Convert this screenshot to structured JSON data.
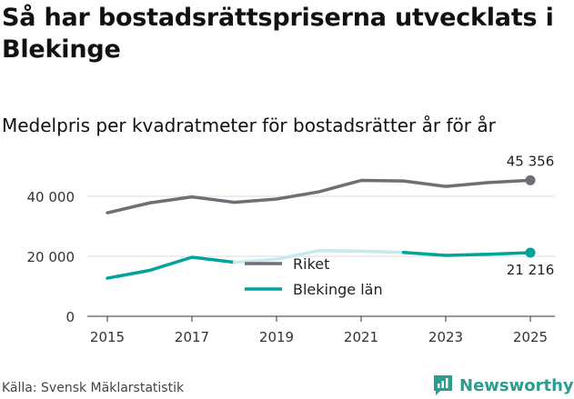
{
  "title": "Så har bostadsrättspriserna utvecklats i Blekinge",
  "subtitle": "Medelpris per kvadratmeter för bostadsrätter år för år",
  "source": "Källa: Svensk Mäklarstatistik",
  "brand": {
    "name": "Newsworthy",
    "icon": "newsworthy-logo-icon"
  },
  "colors": {
    "riket": "#6e6e76",
    "blekinge": "#00a39a",
    "blekinge_faded": "#c7eaea",
    "grid": "#dddddd",
    "axis": "#333333"
  },
  "chart_data": {
    "type": "line",
    "x": [
      2015,
      2016,
      2017,
      2018,
      2019,
      2020,
      2021,
      2022,
      2023,
      2024,
      2025
    ],
    "series": [
      {
        "name": "Riket",
        "values": [
          34500,
          37800,
          39800,
          38000,
          39100,
          41500,
          45300,
          45100,
          43300,
          44600,
          45356
        ]
      },
      {
        "name": "Blekinge län",
        "values": [
          12700,
          15300,
          19700,
          18000,
          19000,
          21900,
          21700,
          21300,
          20300,
          20700,
          21216
        ]
      }
    ],
    "xticks": [
      "2015",
      "2017",
      "2019",
      "2021",
      "2023",
      "2025"
    ],
    "yticks": [
      "0",
      "20 000",
      "40 000"
    ],
    "ylim": [
      0,
      50000
    ],
    "end_labels": [
      "45 356",
      "21 216"
    ],
    "legend": [
      "Riket",
      "Blekinge län"
    ],
    "legend_position": "center"
  }
}
